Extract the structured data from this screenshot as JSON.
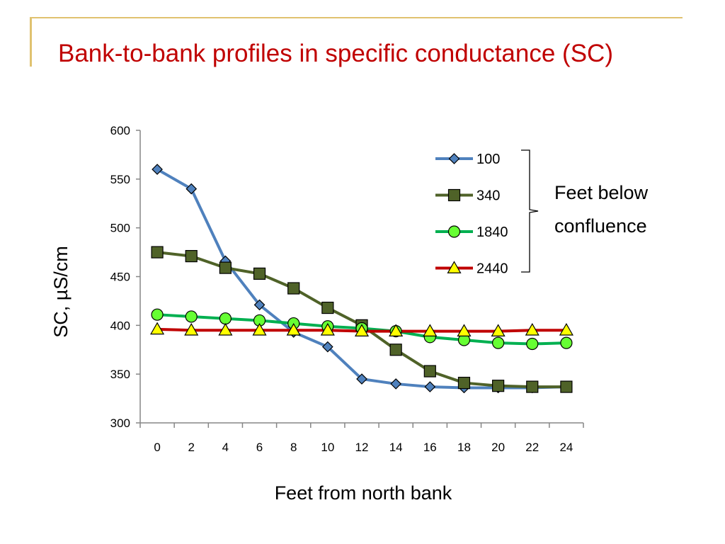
{
  "slide": {
    "title": "Bank-to-bank profiles in specific conductance (SC)",
    "accent_color": "#e0c270",
    "title_color": "#c00000"
  },
  "chart_data": {
    "type": "line",
    "title": "",
    "xlabel": "Feet from north bank",
    "ylabel": "SC, µS/cm",
    "ylim": [
      300,
      600
    ],
    "yticks": [
      300,
      350,
      400,
      450,
      500,
      550,
      600
    ],
    "x": [
      0,
      2,
      4,
      6,
      8,
      10,
      12,
      14,
      16,
      18,
      20,
      22,
      24
    ],
    "legend_placement": "upper-right",
    "legend_group_label": "Feet below confluence",
    "grid": false,
    "series": [
      {
        "name": "100",
        "marker": "diamond",
        "color": "#4f81bd",
        "marker_fill": "#4f81bd",
        "values": [
          560,
          540,
          466,
          421,
          393,
          378,
          345,
          340,
          337,
          336,
          336,
          336,
          337
        ]
      },
      {
        "name": "340",
        "marker": "square",
        "color": "#4f6228",
        "marker_fill": "#4f6228",
        "values": [
          475,
          471,
          459,
          453,
          438,
          418,
          400,
          375,
          353,
          341,
          338,
          337,
          337
        ]
      },
      {
        "name": "1840",
        "marker": "circle",
        "color": "#00b050",
        "marker_fill": "#66ff33",
        "values": [
          411,
          409,
          407,
          405,
          402,
          399,
          397,
          394,
          388,
          385,
          382,
          381,
          382
        ]
      },
      {
        "name": "2440",
        "marker": "triangle",
        "color": "#c00000",
        "marker_fill": "#ffff00",
        "values": [
          396,
          395,
          395,
          395,
          395,
          395,
          394,
          394,
          394,
          394,
          394,
          395,
          395
        ]
      }
    ]
  }
}
